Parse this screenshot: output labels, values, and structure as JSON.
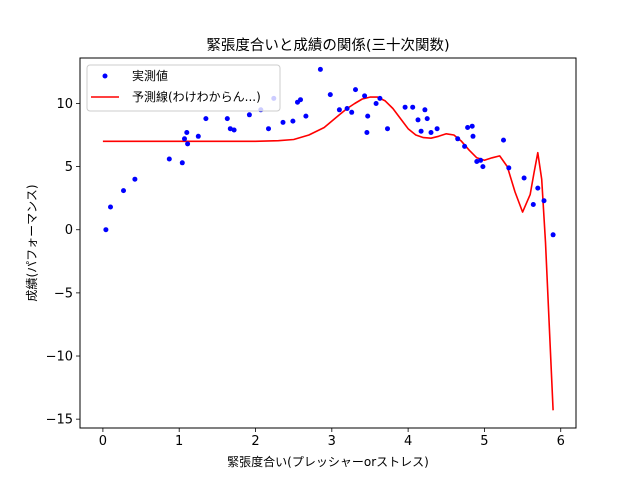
{
  "chart_data": {
    "type": "scatter",
    "title": "緊張度合いと成績の関係(三十次関数)",
    "xlabel": "緊張度合い(プレッシャーorストレス)",
    "ylabel": "成績(パフォーマンス)",
    "xlim": [
      -0.3,
      6.2
    ],
    "ylim": [
      -15.7,
      13.6
    ],
    "xticks": [
      0,
      1,
      2,
      3,
      4,
      5,
      6
    ],
    "yticks": [
      -15,
      -10,
      -5,
      0,
      5,
      10
    ],
    "legend_position": "upper-left",
    "colors": {
      "points": "#0000ff",
      "curve": "#ff0000"
    },
    "series": [
      {
        "name": "実測値",
        "kind": "scatter",
        "x": [
          0.04,
          0.1,
          0.27,
          0.42,
          0.87,
          1.04,
          1.07,
          1.1,
          1.11,
          1.25,
          1.35,
          1.63,
          1.67,
          1.72,
          1.92,
          2.07,
          2.17,
          2.24,
          2.36,
          2.49,
          2.55,
          2.59,
          2.66,
          2.85,
          2.98,
          3.1,
          3.2,
          3.26,
          3.31,
          3.43,
          3.46,
          3.47,
          3.58,
          3.63,
          3.73,
          3.96,
          4.06,
          4.13,
          4.17,
          4.22,
          4.25,
          4.3,
          4.38,
          4.65,
          4.74,
          4.78,
          4.84,
          4.85,
          4.9,
          4.95,
          4.98,
          5.25,
          5.32,
          5.52,
          5.64,
          5.7,
          5.78,
          5.9
        ],
        "y": [
          0.0,
          1.8,
          3.1,
          4.0,
          5.6,
          5.3,
          7.2,
          7.7,
          6.8,
          7.4,
          8.8,
          8.8,
          8.0,
          7.9,
          9.1,
          9.5,
          8.0,
          10.4,
          8.5,
          8.6,
          10.1,
          10.3,
          9.0,
          12.7,
          10.7,
          9.5,
          9.6,
          9.3,
          11.1,
          10.6,
          7.7,
          9.0,
          10.0,
          10.4,
          8.0,
          9.7,
          9.7,
          8.7,
          7.8,
          9.5,
          8.8,
          7.7,
          8.0,
          7.2,
          6.6,
          8.1,
          8.2,
          7.4,
          5.4,
          5.5,
          5.0,
          7.1,
          4.9,
          4.1,
          2.0,
          3.3,
          2.3,
          -0.4
        ]
      },
      {
        "name": "予測線(わけわからん...)",
        "kind": "line",
        "x": [
          0.0,
          0.5,
          1.0,
          1.5,
          2.0,
          2.3,
          2.5,
          2.7,
          2.9,
          3.0,
          3.1,
          3.2,
          3.3,
          3.4,
          3.5,
          3.6,
          3.7,
          3.8,
          3.9,
          4.0,
          4.1,
          4.2,
          4.3,
          4.4,
          4.5,
          4.6,
          4.7,
          4.8,
          4.9,
          5.0,
          5.1,
          5.2,
          5.3,
          5.4,
          5.5,
          5.6,
          5.65,
          5.7,
          5.75,
          5.8,
          5.9
        ],
        "y": [
          7.0,
          7.0,
          7.0,
          7.0,
          7.0,
          7.05,
          7.15,
          7.5,
          8.1,
          8.6,
          9.1,
          9.6,
          10.0,
          10.35,
          10.5,
          10.5,
          10.2,
          9.6,
          8.8,
          8.0,
          7.5,
          7.3,
          7.25,
          7.4,
          7.6,
          7.5,
          7.0,
          6.3,
          5.7,
          5.5,
          5.7,
          5.85,
          5.0,
          3.0,
          1.4,
          2.8,
          4.5,
          6.1,
          4.0,
          -1.0,
          -14.3
        ]
      }
    ]
  }
}
